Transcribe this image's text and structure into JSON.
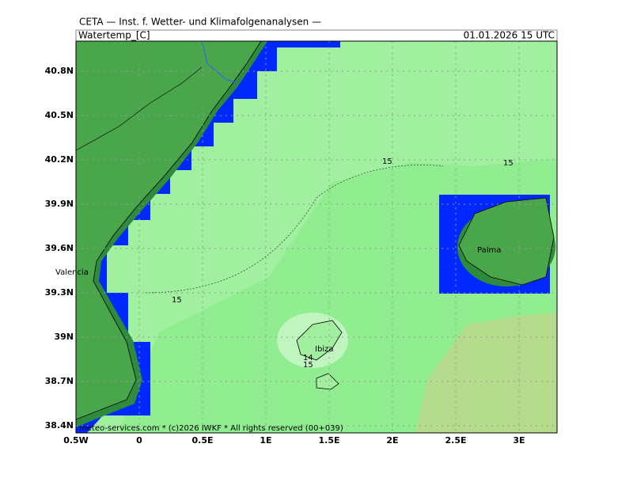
{
  "header": {
    "title": "CETA — Inst. f. Wetter- und Klimafolgenanalysen —",
    "variable": "Watertemp_[C]",
    "datetime": "01.01.2026 15 UTC"
  },
  "axes": {
    "lon_ticks": [
      "0.5W",
      "0",
      "0.5E",
      "1E",
      "1.5E",
      "2E",
      "2.5E",
      "3E"
    ],
    "lat_ticks": [
      "40.8N",
      "40.5N",
      "40.2N",
      "39.9N",
      "39.6N",
      "39.3N",
      "39N",
      "38.7N",
      "38.4N"
    ]
  },
  "places": [
    "Valencia",
    "Palma",
    "Ibiza"
  ],
  "contour_labels": [
    "15",
    "15",
    "15",
    "14",
    "15"
  ],
  "footer": "meteo-services.com * (c)2026 IWKF * All rights reserved (00+039)"
}
